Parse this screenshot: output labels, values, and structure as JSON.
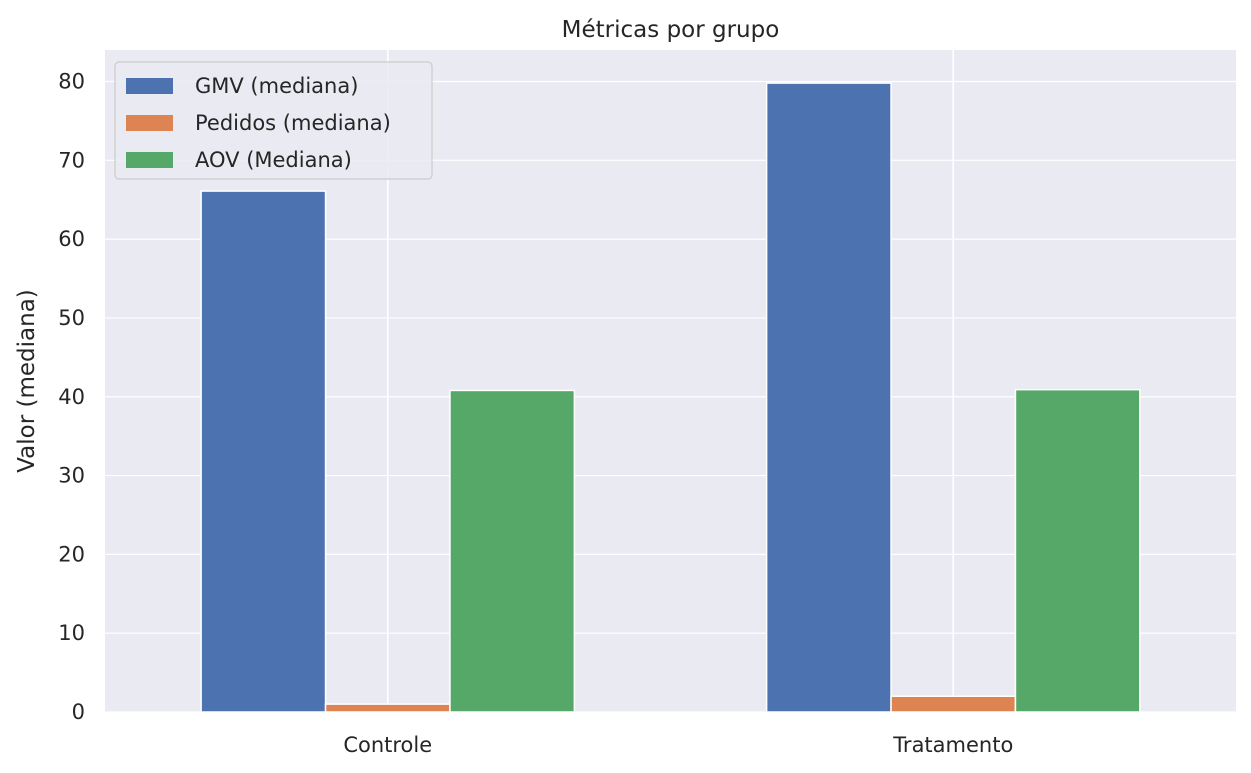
{
  "chart_data": {
    "type": "bar",
    "title": "Métricas por grupo",
    "xlabel": "",
    "ylabel": "Valor (mediana)",
    "categories": [
      "Controle",
      "Tratamento"
    ],
    "series": [
      {
        "name": "GMV (mediana)",
        "values": [
          66.1,
          79.8
        ],
        "color": "#4c72b0"
      },
      {
        "name": "Pedidos (mediana)",
        "values": [
          1,
          2
        ],
        "color": "#dd8452"
      },
      {
        "name": "AOV (Mediana)",
        "values": [
          40.8,
          40.9
        ],
        "color": "#55a868"
      }
    ],
    "ylim": [
      0,
      84
    ],
    "yticks": [
      0,
      10,
      20,
      30,
      40,
      50,
      60,
      70,
      80
    ],
    "grid": true,
    "legend_position": "top-left",
    "background_color": "#eaeaf2",
    "grid_color": "#ffffff"
  }
}
